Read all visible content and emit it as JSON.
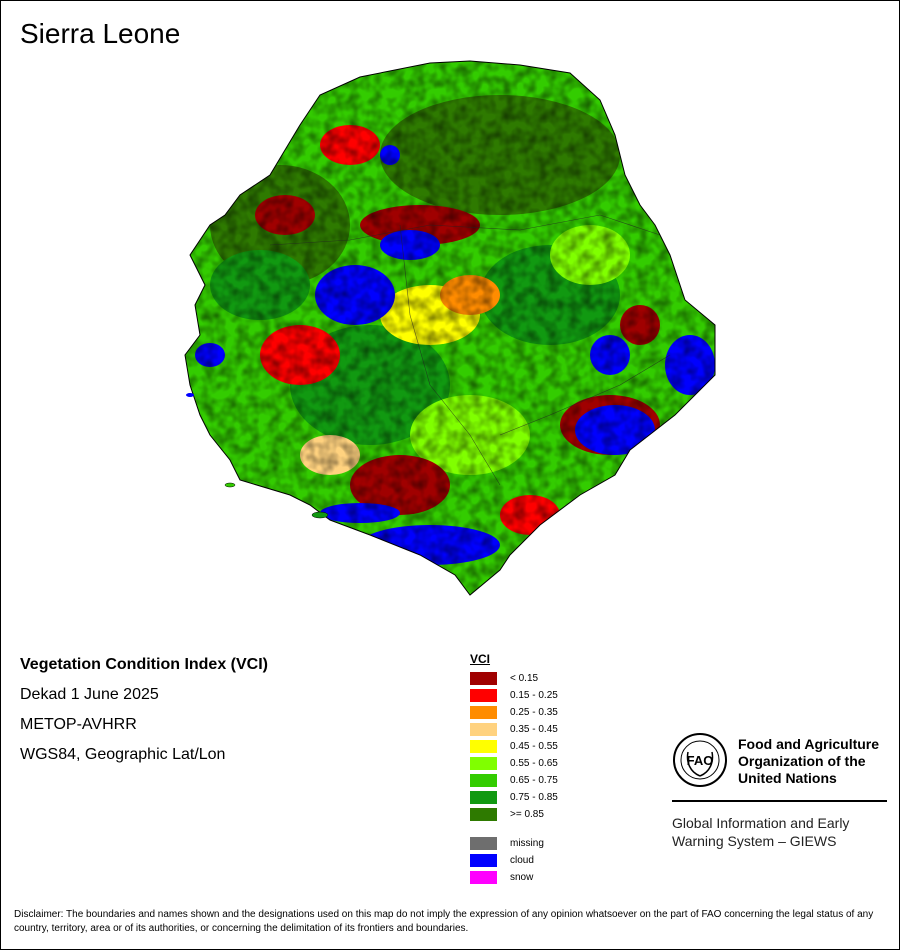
{
  "title": "Sierra Leone",
  "info": {
    "index_name": "Vegetation Condition Index (VCI)",
    "period": "Dekad 1 June 2025",
    "sensor": "METOP-AVHRR",
    "projection": "WGS84, Geographic Lat/Lon"
  },
  "legend": {
    "title": "VCI",
    "classes": [
      {
        "label": "< 0.15",
        "color": "#a00000"
      },
      {
        "label": "0.15 - 0.25",
        "color": "#ff0000"
      },
      {
        "label": "0.25 - 0.35",
        "color": "#ff8c00"
      },
      {
        "label": "0.35 - 0.45",
        "color": "#ffd27f"
      },
      {
        "label": "0.45 - 0.55",
        "color": "#ffff00"
      },
      {
        "label": "0.55 - 0.65",
        "color": "#80ff00"
      },
      {
        "label": "0.65 - 0.75",
        "color": "#33cc00"
      },
      {
        "label": "0.75 - 0.85",
        "color": "#119911"
      },
      {
        "label": ">= 0.85",
        "color": "#2e7a00"
      }
    ],
    "extra": [
      {
        "label": "missing",
        "color": "#6e6e6e"
      },
      {
        "label": "cloud",
        "color": "#0000ff"
      },
      {
        "label": "snow",
        "color": "#ff00ff"
      }
    ]
  },
  "org": {
    "logo_text": "FAO",
    "name_line1": "Food and Agriculture",
    "name_line2": "Organization of the",
    "name_line3": "United Nations",
    "giews_line1": "Global Information and Early",
    "giews_line2": "Warning System – GIEWS"
  },
  "disclaimer": "Disclaimer: The boundaries and names shown and the designations used on this map do not imply the expression of any opinion whatsoever on the part of FAO concerning the legal status of any country, territory, area or of its authorities, or concerning the delimitation of its frontiers and boundaries."
}
